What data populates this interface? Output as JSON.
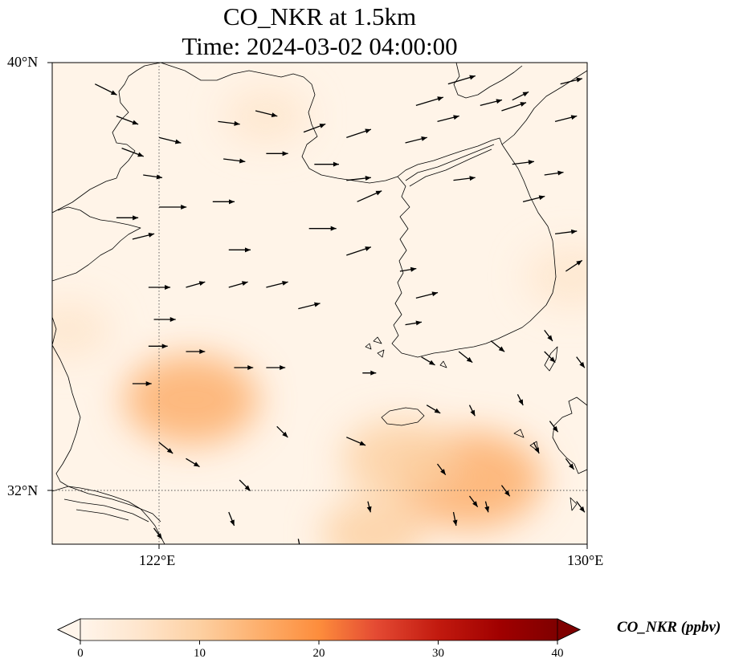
{
  "title": {
    "line1": "CO_NKR at 1.5km",
    "line2": "Time: 2024-03-02 04:00:00"
  },
  "axes": {
    "lon_labels": [
      "122°E",
      "130°E"
    ],
    "lat_labels": [
      "40°N",
      "32°N"
    ],
    "lon_range": [
      120,
      130
    ],
    "lat_range": [
      31,
      40
    ],
    "gridlines": {
      "lon": [
        122
      ],
      "lat": [
        32
      ]
    }
  },
  "colorbar": {
    "label": "CO_NKR (ppbv)",
    "ticks": [
      "0",
      "10",
      "20",
      "30",
      "40"
    ],
    "range": [
      0,
      40
    ],
    "extend": "both",
    "colormap": [
      "#fff5eb",
      "#fee6ce",
      "#fdd0a2",
      "#fdae6b",
      "#fd8d3c",
      "#f16913",
      "#d94801",
      "#a60000",
      "#7f0000"
    ]
  },
  "chart_data": {
    "type": "heatmap",
    "variable": "CO_NKR",
    "units": "ppbv",
    "level": "1.5km",
    "time": "2024-03-02 04:00:00",
    "concentration_hotspots": [
      {
        "lon": 122.6,
        "lat": 33.7,
        "value": 14
      },
      {
        "lon": 127.8,
        "lat": 32.2,
        "value": 16
      },
      {
        "lon": 126.5,
        "lat": 32.6,
        "value": 11
      },
      {
        "lon": 124.0,
        "lat": 39.0,
        "value": 6
      },
      {
        "lon": 129.7,
        "lat": 36.0,
        "value": 7
      },
      {
        "lon": 120.3,
        "lat": 35.0,
        "value": 6
      },
      {
        "lon": 126.0,
        "lat": 31.2,
        "value": 9
      }
    ],
    "wind_vectors": [
      [
        120.8,
        39.6,
        -0.8,
        0.4
      ],
      [
        121.2,
        39.0,
        -0.8,
        0.3
      ],
      [
        121.3,
        38.4,
        -0.8,
        0.3
      ],
      [
        121.7,
        37.9,
        -0.7,
        0.1
      ],
      [
        121.2,
        37.1,
        -0.8,
        0
      ],
      [
        121.5,
        36.7,
        -0.8,
        -0.2
      ],
      [
        121.9,
        35.2,
        -0.8,
        0
      ],
      [
        121.8,
        34.7,
        -0.7,
        0
      ],
      [
        121.5,
        34.0,
        -0.7,
        0
      ],
      [
        121.8,
        35.8,
        -0.8,
        0
      ],
      [
        122.0,
        38.6,
        -0.8,
        0.2
      ],
      [
        122.0,
        37.3,
        -1,
        0
      ],
      [
        122.5,
        35.8,
        -0.7,
        -0.2
      ],
      [
        122.5,
        34.6,
        -0.7,
        0
      ],
      [
        122.0,
        32.9,
        -0.5,
        0.4
      ],
      [
        122.5,
        32.6,
        -0.5,
        0.3
      ],
      [
        121.9,
        31.3,
        -0.3,
        0.4
      ],
      [
        123.1,
        38.9,
        -0.8,
        0.1
      ],
      [
        123.2,
        38.2,
        -0.8,
        0.1
      ],
      [
        123.0,
        37.4,
        -0.8,
        0
      ],
      [
        123.3,
        36.5,
        -0.8,
        0
      ],
      [
        123.3,
        35.8,
        -0.7,
        -0.2
      ],
      [
        123.4,
        34.3,
        -0.7,
        0
      ],
      [
        123.5,
        32.2,
        -0.4,
        0.4
      ],
      [
        123.3,
        31.6,
        -0.2,
        0.5
      ],
      [
        124.0,
        35.8,
        -0.8,
        -0.2
      ],
      [
        124.0,
        34.3,
        -0.7,
        0
      ],
      [
        124.6,
        35.4,
        -0.8,
        -0.2
      ],
      [
        123.8,
        39.1,
        -0.8,
        0.2
      ],
      [
        124.0,
        38.3,
        -0.8,
        0
      ],
      [
        124.9,
        38.1,
        -0.9,
        0
      ],
      [
        124.7,
        38.7,
        -0.8,
        -0.3
      ],
      [
        124.8,
        36.9,
        -1,
        0
      ],
      [
        124.2,
        33.2,
        -0.4,
        0.4
      ],
      [
        124.6,
        31.1,
        -0.1,
        0.5
      ],
      [
        125.5,
        38.6,
        -0.9,
        -0.3
      ],
      [
        125.5,
        37.8,
        -0.9,
        -0.1
      ],
      [
        125.7,
        37.4,
        -0.9,
        -0.4
      ],
      [
        125.5,
        36.4,
        -0.9,
        -0.3
      ],
      [
        125.8,
        34.2,
        -0.5,
        0
      ],
      [
        125.5,
        33.0,
        -0.7,
        0.3
      ],
      [
        125.9,
        31.8,
        -0.1,
        0.4
      ],
      [
        126.8,
        39.2,
        -1,
        -0.3
      ],
      [
        126.6,
        38.5,
        -0.8,
        -0.2
      ],
      [
        127.2,
        38.9,
        -0.8,
        -0.2
      ],
      [
        127.4,
        39.6,
        -1,
        -0.3
      ],
      [
        128.0,
        39.2,
        -0.8,
        -0.2
      ],
      [
        128.4,
        39.1,
        -0.9,
        -0.3
      ],
      [
        128.6,
        39.3,
        -0.6,
        -0.3
      ],
      [
        127.5,
        37.8,
        -0.8,
        -0.1
      ],
      [
        126.5,
        36.1,
        -0.6,
        -0.1
      ],
      [
        126.8,
        35.6,
        -0.8,
        -0.2
      ],
      [
        126.6,
        35.1,
        -0.6,
        -0.1
      ],
      [
        126.9,
        34.5,
        -0.5,
        0.3
      ],
      [
        127.0,
        33.6,
        -0.5,
        0.3
      ],
      [
        127.2,
        32.5,
        -0.3,
        0.4
      ],
      [
        127.5,
        31.6,
        -0.1,
        0.5
      ],
      [
        127.6,
        34.6,
        -0.5,
        0.4
      ],
      [
        127.8,
        33.6,
        -0.2,
        0.4
      ],
      [
        128.2,
        34.8,
        -0.5,
        0.4
      ],
      [
        128.6,
        38.1,
        -0.8,
        -0.1
      ],
      [
        128.8,
        37.4,
        -0.8,
        -0.2
      ],
      [
        129.4,
        36.8,
        -0.8,
        -0.1
      ],
      [
        129.4,
        38.9,
        -0.8,
        -0.2
      ],
      [
        129.5,
        39.6,
        -0.8,
        -0.2
      ],
      [
        129.2,
        37.9,
        -0.7,
        -0.1
      ],
      [
        129.6,
        36.1,
        -0.6,
        -0.4
      ],
      [
        129.2,
        34.6,
        -0.4,
        0.4
      ],
      [
        129.3,
        33.3,
        -0.3,
        0.4
      ],
      [
        129.6,
        32.6,
        -0.3,
        0.4
      ],
      [
        129.8,
        31.8,
        -0.3,
        0.4
      ],
      [
        128.4,
        32.1,
        -0.3,
        0.4
      ],
      [
        129.0,
        32.9,
        -0.2,
        0.4
      ],
      [
        129.8,
        34.5,
        -0.3,
        0.4
      ],
      [
        129.2,
        35.0,
        -0.3,
        0.4
      ],
      [
        128.7,
        33.8,
        -0.2,
        0.4
      ],
      [
        127.8,
        31.9,
        -0.3,
        0.4
      ],
      [
        128.1,
        31.8,
        -0.1,
        0.4
      ]
    ]
  }
}
